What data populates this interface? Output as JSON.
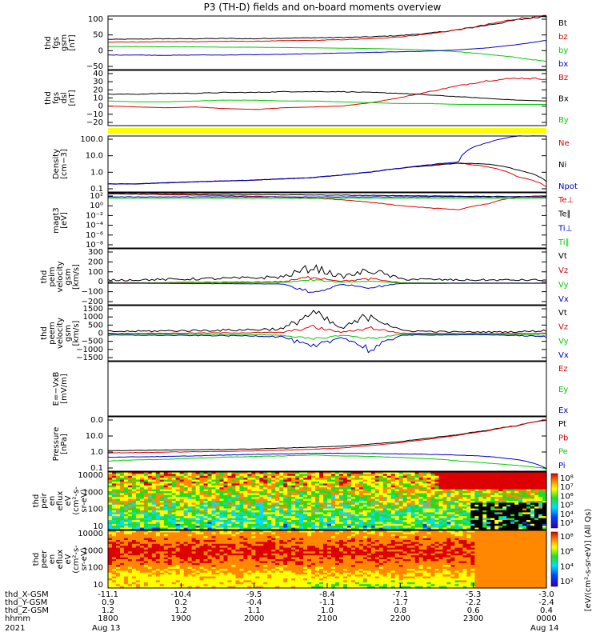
{
  "title": "P3 (TH-D) fields and on-board moments overview",
  "colors": {
    "black": "#000000",
    "red": "#dd0000",
    "green": "#00cc00",
    "blue": "#0000cc",
    "yellow": "#ffff00"
  },
  "chart_data": [
    {
      "type": "line",
      "ylabel": [
        "thd",
        "fgs",
        "gsm",
        "[nT]"
      ],
      "yticks": [
        "100",
        "50",
        "0",
        "−50"
      ],
      "ylim": [
        -65,
        100
      ],
      "series": [
        {
          "name": "Bt",
          "color": "black",
          "values": [
            28,
            29,
            30,
            30,
            31,
            30,
            32,
            33,
            34,
            36,
            40,
            47,
            58,
            72,
            88,
            100
          ]
        },
        {
          "name": "bz",
          "color": "red",
          "values": [
            20,
            20,
            21,
            21,
            22,
            22,
            24,
            25,
            27,
            30,
            36,
            45,
            58,
            74,
            92,
            100
          ]
        },
        {
          "name": "by",
          "color": "green",
          "values": [
            6,
            6,
            5,
            5,
            4,
            4,
            3,
            2,
            1,
            0,
            -2,
            -5,
            -10,
            -18,
            -28,
            -40
          ]
        },
        {
          "name": "bx",
          "color": "blue",
          "values": [
            -20,
            -20,
            -21,
            -20,
            -20,
            -19,
            -18,
            -16,
            -14,
            -12,
            -10,
            -8,
            -4,
            2,
            12,
            25
          ]
        }
      ]
    },
    {
      "type": "line",
      "ylabel": [
        "thd",
        "fgs",
        "dsl",
        "[nT]"
      ],
      "yticks": [
        "40",
        "30",
        "20",
        "10",
        "0",
        "−10",
        "−20"
      ],
      "ylim": [
        -25,
        40
      ],
      "series": [
        {
          "name": "Bz",
          "color": "red",
          "values": [
            -2,
            -3,
            -4,
            -3,
            -5,
            -6,
            -4,
            -3,
            -2,
            2,
            8,
            15,
            22,
            28,
            31,
            30
          ]
        },
        {
          "name": "Bx",
          "color": "black",
          "values": [
            12,
            12,
            13,
            13,
            14,
            14,
            15,
            15,
            15,
            14,
            13,
            11,
            9,
            7,
            5,
            4
          ]
        },
        {
          "name": "By",
          "color": "green",
          "values": [
            4,
            3,
            3,
            4,
            5,
            5,
            4,
            4,
            3,
            2,
            1,
            1,
            0,
            0,
            0,
            0
          ]
        }
      ]
    },
    {
      "type": "line",
      "log": true,
      "ylabel": [
        "Density",
        "[cm−3]"
      ],
      "yticks": [
        "100.0",
        "10.0",
        "1.0",
        "0.1"
      ],
      "ylim": [
        0.1,
        200
      ],
      "series": [
        {
          "name": "Ne",
          "color": "red",
          "values": [
            0.3,
            0.3,
            0.35,
            0.4,
            0.45,
            0.5,
            0.6,
            0.7,
            1.0,
            1.5,
            2.5,
            4,
            5,
            3,
            0.8,
            0.2
          ]
        },
        {
          "name": "Ni",
          "color": "black",
          "values": [
            0.3,
            0.3,
            0.35,
            0.4,
            0.45,
            0.5,
            0.6,
            0.7,
            1.0,
            1.5,
            2.5,
            3.5,
            5,
            4.5,
            2,
            0.4
          ]
        },
        {
          "name": "Npot",
          "color": "blue",
          "values": [
            0.3,
            0.3,
            0.35,
            0.4,
            0.45,
            0.5,
            0.6,
            0.7,
            1.0,
            1.5,
            2.5,
            4,
            6,
            80,
            200,
            200
          ]
        }
      ]
    },
    {
      "type": "line",
      "log": true,
      "ylabel": [
        "magt3",
        "[eV]"
      ],
      "yticks": [
        "10²",
        "10⁰",
        "10⁻²",
        "10⁻⁴",
        "10⁻⁶",
        "10⁻⁸"
      ],
      "ylim": [
        1,
        1000
      ],
      "series": [
        {
          "name": "Te⊥",
          "color": "red",
          "values": [
            900,
            850,
            800,
            750,
            700,
            650,
            600,
            500,
            420,
            300,
            200,
            150,
            120,
            250,
            600,
            700
          ]
        },
        {
          "name": "Te∥",
          "color": "black",
          "values": [
            900,
            880,
            860,
            840,
            820,
            800,
            780,
            760,
            740,
            720,
            700,
            680,
            660,
            640,
            620,
            600
          ]
        },
        {
          "name": "Ti⊥",
          "color": "blue",
          "values": [
            600,
            600,
            600,
            600,
            600,
            600,
            600,
            600,
            600,
            600,
            600,
            600,
            600,
            600,
            600,
            600
          ]
        },
        {
          "name": "Ti∥",
          "color": "green",
          "values": [
            500,
            500,
            500,
            500,
            500,
            500,
            500,
            500,
            500,
            500,
            500,
            500,
            500,
            500,
            500,
            500
          ]
        }
      ]
    },
    {
      "type": "line",
      "ylabel": [
        "thd",
        "peim",
        "velocity",
        "gsm",
        "[km/s]"
      ],
      "yticks": [
        "300",
        "200",
        "100",
        "0",
        "−100",
        "−200"
      ],
      "ylim": [
        -200,
        320
      ],
      "series": [
        {
          "name": "Vt",
          "color": "black",
          "values": [
            30,
            32,
            35,
            40,
            45,
            50,
            60,
            150,
            60,
            120,
            40,
            35,
            30,
            30,
            30,
            30
          ]
        },
        {
          "name": "Vz",
          "color": "red",
          "values": [
            5,
            5,
            6,
            8,
            10,
            12,
            15,
            60,
            20,
            40,
            5,
            3,
            2,
            2,
            2,
            2
          ]
        },
        {
          "name": "Vy",
          "color": "green",
          "values": [
            2,
            2,
            3,
            4,
            5,
            6,
            8,
            30,
            10,
            20,
            3,
            2,
            1,
            1,
            1,
            1
          ]
        },
        {
          "name": "Vx",
          "color": "blue",
          "values": [
            0,
            0,
            -2,
            -3,
            -4,
            -5,
            -8,
            -90,
            -10,
            -40,
            -2,
            -1,
            0,
            0,
            0,
            0
          ]
        }
      ]
    },
    {
      "type": "line",
      "ylabel": [
        "thd",
        "peem",
        "velocity",
        "gsm",
        "[km/s]"
      ],
      "yticks": [
        "1500",
        "1000",
        "500",
        "0",
        "−500",
        "−1000",
        "−1500"
      ],
      "ylim": [
        -1500,
        1600
      ],
      "series": [
        {
          "name": "Vt",
          "color": "black",
          "values": [
            150,
            160,
            180,
            200,
            220,
            250,
            300,
            1200,
            300,
            1100,
            200,
            150,
            120,
            120,
            130,
            200
          ]
        },
        {
          "name": "Vz",
          "color": "red",
          "values": [
            40,
            40,
            50,
            60,
            70,
            80,
            100,
            400,
            100,
            350,
            50,
            40,
            30,
            30,
            30,
            50
          ]
        },
        {
          "name": "Vy",
          "color": "green",
          "values": [
            0,
            0,
            -10,
            -20,
            -30,
            -40,
            -60,
            -300,
            -60,
            -250,
            -20,
            -10,
            0,
            0,
            -20,
            -60
          ]
        },
        {
          "name": "Vx",
          "color": "blue",
          "values": [
            -60,
            -60,
            -70,
            -80,
            -90,
            -100,
            -150,
            -800,
            -150,
            -900,
            -60,
            -50,
            -40,
            -40,
            -80,
            -150
          ]
        }
      ]
    },
    {
      "type": "line",
      "ylabel": [
        "E=−VxB",
        "[mV/m]"
      ],
      "yticks": [],
      "series": [
        {
          "name": "Ez",
          "color": "red",
          "values": []
        },
        {
          "name": "Ey",
          "color": "green",
          "values": []
        },
        {
          "name": "Ex",
          "color": "blue",
          "values": []
        }
      ]
    },
    {
      "type": "line",
      "log": true,
      "ylabel": [
        "Pressure",
        "[nPa]"
      ],
      "yticks": [
        "0.0",
        "10.0",
        "1.0",
        "0.1"
      ],
      "ylim": [
        0.02,
        100
      ],
      "series": [
        {
          "name": "Pt",
          "color": "black",
          "values": [
            0.5,
            0.52,
            0.55,
            0.58,
            0.6,
            0.65,
            0.75,
            0.85,
            1.0,
            1.4,
            2.0,
            3.5,
            6,
            12,
            25,
            60
          ]
        },
        {
          "name": "Pb",
          "color": "red",
          "values": [
            0.35,
            0.37,
            0.4,
            0.42,
            0.45,
            0.48,
            0.55,
            0.62,
            0.75,
            1.1,
            1.7,
            3.0,
            5.5,
            11,
            24,
            58
          ]
        },
        {
          "name": "Pe",
          "color": "green",
          "values": [
            0.1,
            0.12,
            0.13,
            0.15,
            0.18,
            0.2,
            0.22,
            0.25,
            0.22,
            0.2,
            0.17,
            0.14,
            0.1,
            0.07,
            0.05,
            0.03
          ]
        },
        {
          "name": "Pi",
          "color": "blue",
          "values": [
            0.18,
            0.19,
            0.2,
            0.22,
            0.25,
            0.28,
            0.3,
            0.33,
            0.33,
            0.32,
            0.3,
            0.28,
            0.25,
            0.2,
            0.12,
            0.03
          ]
        }
      ]
    },
    {
      "type": "heatmap",
      "ylabel": [
        "thd",
        "peir",
        "en",
        "eflux",
        "eV",
        "(cm²-s-",
        "sr-eV)"
      ],
      "yticks": [
        "10000",
        "1000",
        "100",
        "10"
      ],
      "cbticks": [
        "10⁸",
        "10⁷",
        "10⁶",
        "10⁵",
        "10⁴",
        "10³"
      ]
    },
    {
      "type": "heatmap",
      "ylabel": [
        "thd",
        "peer",
        "en",
        "eflux",
        "eV",
        "(cm²-s-",
        "sr-eV)"
      ],
      "yticks": [
        "10000",
        "1000",
        "100",
        "10"
      ],
      "cbticks": [
        "10⁸",
        "10⁶",
        "10⁴",
        "10²"
      ]
    }
  ],
  "cbar_label": "[eV/(cm²-s-sr-eV)] (All Qs)",
  "xaxis": {
    "rows": [
      {
        "label": "thd_X-GSM",
        "values": [
          "-11.1",
          "-10.4",
          "-9.5",
          "-8.4",
          "-7.1",
          "-5.3",
          "-3.0"
        ]
      },
      {
        "label": "thd_Y-GSM",
        "values": [
          "0.9",
          "0.2",
          "-0.4",
          "-1.1",
          "-1.7",
          "-2.2",
          "-2.4"
        ]
      },
      {
        "label": "thd_Z-GSM",
        "values": [
          "1.2",
          "1.2",
          "1.1",
          "1.0",
          "0.8",
          "0.6",
          "0.4"
        ]
      },
      {
        "label": "hhmm",
        "values": [
          "1800",
          "1900",
          "2000",
          "2100",
          "2200",
          "2300",
          "0000"
        ]
      }
    ],
    "year": "2021",
    "dates": [
      "Aug 13",
      "Aug 14"
    ]
  }
}
